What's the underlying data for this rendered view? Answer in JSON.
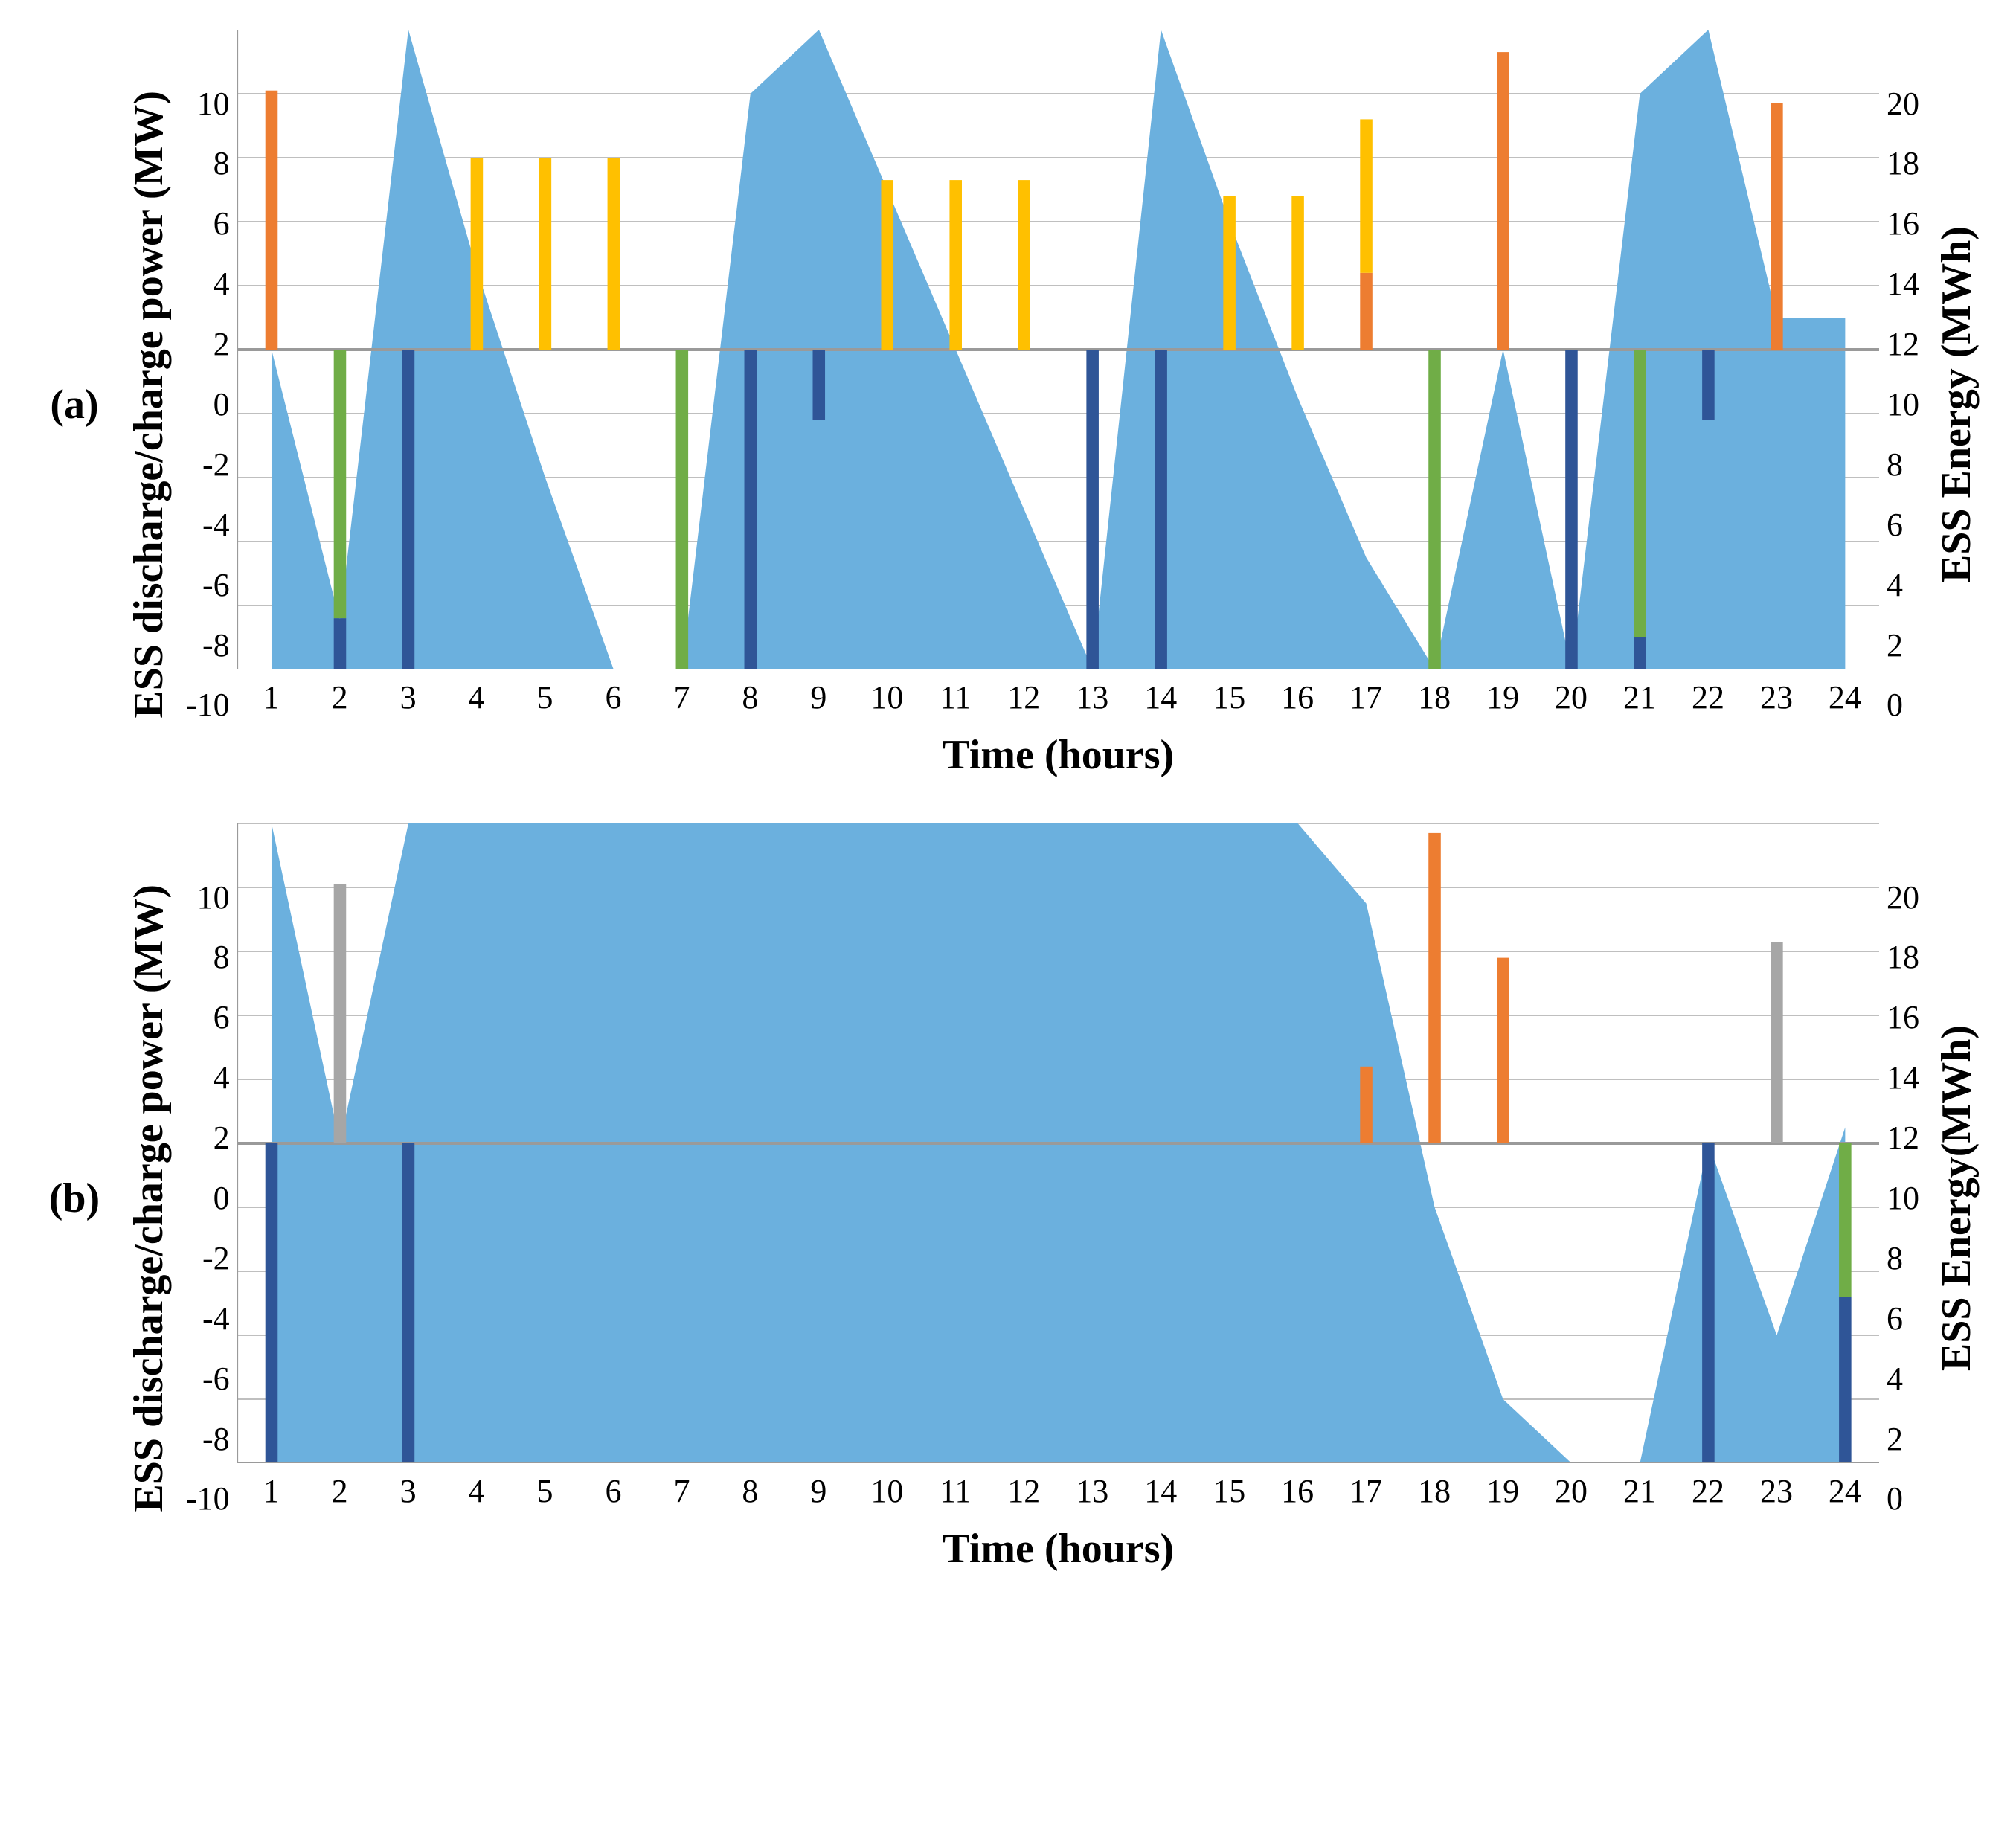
{
  "global": {
    "background_color": "#ffffff",
    "grid_color": "#bfbfbf",
    "axis_line_color": "#9a9a9a",
    "font_family": "serif",
    "tick_fontsize": 44,
    "axis_title_fontsize": 56,
    "panel_label_fontsize": 56
  },
  "x": {
    "label": "Time (hours)",
    "categories": [
      1,
      2,
      3,
      4,
      5,
      6,
      7,
      8,
      9,
      10,
      11,
      12,
      13,
      14,
      15,
      16,
      17,
      18,
      19,
      20,
      21,
      22,
      23,
      24
    ]
  },
  "y_left": {
    "label": "ESS discharge/charge power (MW)",
    "min": -10,
    "max": 10,
    "tick_step": 2,
    "ticks": [
      10,
      8,
      6,
      4,
      2,
      0,
      -2,
      -4,
      -6,
      -8,
      -10
    ]
  },
  "y_right": {
    "label_a": "ESS Energy (MWh)",
    "label_b": "ESS Energy(MWh)",
    "min": 0,
    "max": 20,
    "tick_step": 2,
    "ticks": [
      20,
      18,
      16,
      14,
      12,
      10,
      8,
      6,
      4,
      2,
      0
    ]
  },
  "series_colors": {
    "area_energy": "#6bb0de",
    "bar_orange": "#ed7d31",
    "bar_yellow": "#ffc000",
    "bar_green": "#70ad47",
    "bar_darkblue": "#2f5597",
    "bar_gray": "#a6a6a6"
  },
  "bar_width_rel": 0.18,
  "panels": {
    "a": {
      "tag": "(a)",
      "area_energy": [
        10.0,
        1.5,
        20.0,
        12.5,
        6.0,
        0.0,
        0.0,
        18.0,
        20.0,
        15.0,
        10.0,
        5.0,
        0.0,
        20.0,
        14.0,
        8.5,
        3.5,
        0.0,
        10.0,
        0.0,
        18.0,
        20.0,
        11.0,
        11.0
      ],
      "bars": [
        {
          "x": 1,
          "color": "bar_orange",
          "from": 0,
          "to": 8.1
        },
        {
          "x": 2,
          "color": "bar_green",
          "from": 0,
          "to": -8.4
        },
        {
          "x": 2,
          "color": "bar_darkblue",
          "from": -8.4,
          "to": -10
        },
        {
          "x": 3,
          "color": "bar_darkblue",
          "from": 0,
          "to": -10
        },
        {
          "x": 4,
          "color": "bar_yellow",
          "from": 0,
          "to": 6.0
        },
        {
          "x": 5,
          "color": "bar_yellow",
          "from": 0,
          "to": 6.0
        },
        {
          "x": 6,
          "color": "bar_yellow",
          "from": 0,
          "to": 6.0
        },
        {
          "x": 7,
          "color": "bar_green",
          "from": 0,
          "to": -10
        },
        {
          "x": 8,
          "color": "bar_darkblue",
          "from": 0,
          "to": -10
        },
        {
          "x": 9,
          "color": "bar_darkblue",
          "from": 0,
          "to": -2.2
        },
        {
          "x": 10,
          "color": "bar_yellow",
          "from": 0,
          "to": 5.3
        },
        {
          "x": 11,
          "color": "bar_yellow",
          "from": 0,
          "to": 5.3
        },
        {
          "x": 12,
          "color": "bar_yellow",
          "from": 0,
          "to": 5.3
        },
        {
          "x": 13,
          "color": "bar_darkblue",
          "from": 0,
          "to": -10
        },
        {
          "x": 14,
          "color": "bar_darkblue",
          "from": 0,
          "to": -10
        },
        {
          "x": 15,
          "color": "bar_yellow",
          "from": 0,
          "to": 4.8
        },
        {
          "x": 16,
          "color": "bar_yellow",
          "from": 0,
          "to": 4.8
        },
        {
          "x": 17,
          "color": "bar_orange",
          "from": 0,
          "to": 2.4
        },
        {
          "x": 17,
          "color": "bar_yellow",
          "from": 2.4,
          "to": 7.2
        },
        {
          "x": 18,
          "color": "bar_green",
          "from": 0,
          "to": -10
        },
        {
          "x": 19,
          "color": "bar_orange",
          "from": 0,
          "to": 9.3
        },
        {
          "x": 20,
          "color": "bar_darkblue",
          "from": 0,
          "to": -10
        },
        {
          "x": 21,
          "color": "bar_green",
          "from": 0,
          "to": -9.0
        },
        {
          "x": 21,
          "color": "bar_darkblue",
          "from": -9.0,
          "to": -10
        },
        {
          "x": 22,
          "color": "bar_darkblue",
          "from": 0,
          "to": -2.2
        },
        {
          "x": 23,
          "color": "bar_orange",
          "from": 0,
          "to": 7.7
        }
      ]
    },
    "b": {
      "tag": "(b)",
      "area_energy": [
        20.0,
        10.0,
        20.0,
        20.0,
        20.0,
        20.0,
        20.0,
        20.0,
        20.0,
        20.0,
        20.0,
        20.0,
        20.0,
        20.0,
        20.0,
        20.0,
        17.5,
        8.0,
        2.0,
        0.0,
        0.0,
        10.0,
        4.0,
        10.5
      ],
      "bars": [
        {
          "x": 1,
          "color": "bar_darkblue",
          "from": 0,
          "to": -10
        },
        {
          "x": 2,
          "color": "bar_gray",
          "from": 0,
          "to": 8.1
        },
        {
          "x": 3,
          "color": "bar_darkblue",
          "from": 0,
          "to": -10
        },
        {
          "x": 17,
          "color": "bar_orange",
          "from": 0,
          "to": 2.4
        },
        {
          "x": 18,
          "color": "bar_orange",
          "from": 0,
          "to": 9.7
        },
        {
          "x": 19,
          "color": "bar_orange",
          "from": 0,
          "to": 5.8
        },
        {
          "x": 22,
          "color": "bar_darkblue",
          "from": 0,
          "to": -10
        },
        {
          "x": 23,
          "color": "bar_gray",
          "from": 0,
          "to": 6.3
        },
        {
          "x": 24,
          "color": "bar_green",
          "from": 0,
          "to": -4.8
        },
        {
          "x": 24,
          "color": "bar_darkblue",
          "from": -4.8,
          "to": -10
        }
      ]
    }
  }
}
